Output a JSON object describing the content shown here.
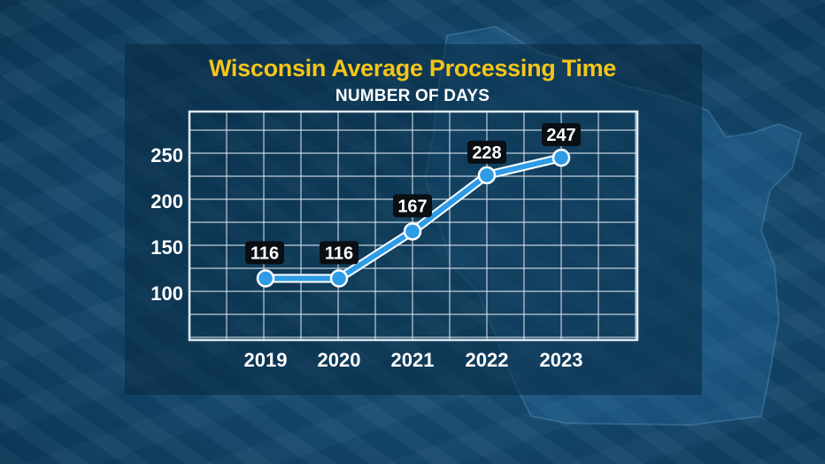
{
  "colors": {
    "title": "#f5c518",
    "line": "#2e9be6",
    "marker_fill": "#2e9be6",
    "marker_stroke": "#ffffff",
    "grid": "#dfe9f1",
    "label_box": "#0a0f14"
  },
  "chart_data": {
    "type": "line",
    "title": "Wisconsin Average Processing Time",
    "subtitle": "NUMBER OF DAYS",
    "categories": [
      "2019",
      "2020",
      "2021",
      "2022",
      "2023"
    ],
    "values": [
      116,
      116,
      167,
      228,
      247
    ],
    "series": [
      {
        "values": [
          116,
          116,
          167,
          228,
          247
        ]
      }
    ],
    "y_ticks": [
      100,
      150,
      200,
      250
    ],
    "ylim": [
      50,
      290
    ],
    "grid": true,
    "data_labels": true,
    "legend": "none"
  }
}
